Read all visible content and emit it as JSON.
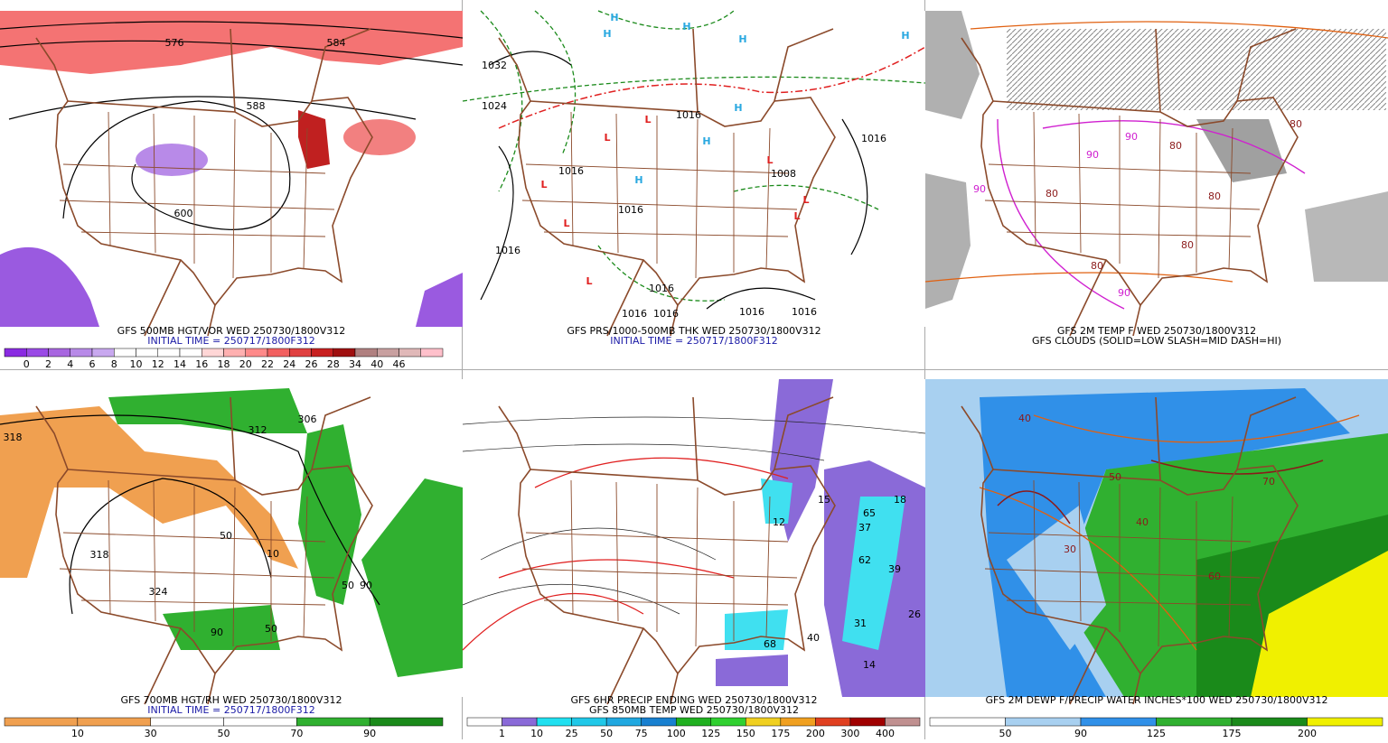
{
  "panels": [
    {
      "captions": [
        {
          "text": "GFS 500MB HGT/VOR WED 250730/1800V312",
          "color": "#000000"
        },
        {
          "text": "INITIAL TIME = 250717/1800F312",
          "color": "#1a1aa6"
        }
      ],
      "map_labels": [
        {
          "text": "576",
          "color": "#000000"
        },
        {
          "text": "584",
          "color": "#000000"
        },
        {
          "text": "588",
          "color": "#000000"
        },
        {
          "text": "600",
          "color": "#000000"
        }
      ],
      "colorbar": {
        "labels": [
          0,
          2,
          4,
          6,
          8,
          10,
          12,
          14,
          16,
          18,
          20,
          22,
          24,
          26,
          28,
          34,
          40,
          46
        ],
        "colors": [
          "#8a2be2",
          "#9a4ae6",
          "#a866e0",
          "#b88ae8",
          "#c8a8ef",
          "#ffffff",
          "#ffffff",
          "#ffffff",
          "#ffffff",
          "#ffd6d6",
          "#ffb0b0",
          "#ff8a8a",
          "#f26060",
          "#e04040",
          "#c82020",
          "#a01010",
          "#b08080",
          "#c8a0a0",
          "#e0b8b8",
          "#ffc0cb"
        ]
      }
    },
    {
      "captions": [
        {
          "text": "GFS PRS/1000-500MB THK WED 250730/1800V312",
          "color": "#000000"
        },
        {
          "text": "INITIAL TIME = 250717/1800F312",
          "color": "#1a1aa6"
        }
      ],
      "map_labels": [
        {
          "text": "H",
          "color": "#29a8e0"
        },
        {
          "text": "H",
          "color": "#29a8e0"
        },
        {
          "text": "H",
          "color": "#29a8e0"
        },
        {
          "text": "H",
          "color": "#29a8e0"
        },
        {
          "text": "H",
          "color": "#29a8e0"
        },
        {
          "text": "H",
          "color": "#29a8e0"
        },
        {
          "text": "H",
          "color": "#29a8e0"
        },
        {
          "text": "H",
          "color": "#29a8e0"
        },
        {
          "text": "L",
          "color": "#e02020"
        },
        {
          "text": "L",
          "color": "#e02020"
        },
        {
          "text": "L",
          "color": "#e02020"
        },
        {
          "text": "L",
          "color": "#e02020"
        },
        {
          "text": "L",
          "color": "#e02020"
        },
        {
          "text": "L",
          "color": "#e02020"
        },
        {
          "text": "L",
          "color": "#e02020"
        },
        {
          "text": "L",
          "color": "#e02020"
        },
        {
          "text": "1032",
          "color": "#000000"
        },
        {
          "text": "1024",
          "color": "#000000"
        },
        {
          "text": "1016",
          "color": "#000000"
        },
        {
          "text": "1016",
          "color": "#000000"
        },
        {
          "text": "1008",
          "color": "#000000"
        },
        {
          "text": "1016",
          "color": "#000000"
        },
        {
          "text": "1016",
          "color": "#000000"
        },
        {
          "text": "1016",
          "color": "#000000"
        },
        {
          "text": "1016",
          "color": "#000000"
        },
        {
          "text": "1016",
          "color": "#000000"
        },
        {
          "text": "1016",
          "color": "#000000"
        },
        {
          "text": "1016",
          "color": "#000000"
        },
        {
          "text": "1016",
          "color": "#000000"
        }
      ],
      "colorbar": null
    },
    {
      "captions": [
        {
          "text": "GFS 2M TEMP F WED 250730/1800V312",
          "color": "#000000"
        },
        {
          "text": "GFS CLOUDS (SOLID=LOW SLASH=MID DASH=HI)",
          "color": "#000000"
        }
      ],
      "map_labels": [
        {
          "text": "80",
          "color": "#8b1a1a"
        },
        {
          "text": "90",
          "color": "#d020d0"
        },
        {
          "text": "90",
          "color": "#d020d0"
        },
        {
          "text": "80",
          "color": "#8b1a1a"
        },
        {
          "text": "80",
          "color": "#8b1a1a"
        },
        {
          "text": "90",
          "color": "#d020d0"
        },
        {
          "text": "80",
          "color": "#8b1a1a"
        },
        {
          "text": "80",
          "color": "#8b1a1a"
        },
        {
          "text": "90",
          "color": "#d020d0"
        },
        {
          "text": "80",
          "color": "#8b1a1a"
        }
      ],
      "colorbar": null
    },
    {
      "captions": [
        {
          "text": "GFS 700MB HGT/RH WED 250730/1800V312",
          "color": "#000000"
        },
        {
          "text": "INITIAL TIME = 250717/1800F312",
          "color": "#1a1aa6"
        }
      ],
      "map_labels": [
        {
          "text": "318",
          "color": "#000000"
        },
        {
          "text": "312",
          "color": "#000000"
        },
        {
          "text": "306",
          "color": "#000000"
        },
        {
          "text": "324",
          "color": "#000000"
        },
        {
          "text": "318",
          "color": "#000000"
        },
        {
          "text": "50",
          "color": "#000000"
        },
        {
          "text": "50",
          "color": "#000000"
        },
        {
          "text": "90",
          "color": "#000000"
        },
        {
          "text": "90",
          "color": "#000000"
        },
        {
          "text": "10",
          "color": "#000000"
        },
        {
          "text": "50",
          "color": "#000000"
        }
      ],
      "colorbar": {
        "labels": [
          10,
          30,
          50,
          70,
          90
        ],
        "colors": [
          "#f0a050",
          "#f0a050",
          "#ffffff",
          "#ffffff",
          "#30b030",
          "#1a8a1a"
        ]
      }
    },
    {
      "captions": [
        {
          "text": "GFS 6HR PRECIP ENDING WED 250730/1800V312",
          "color": "#000000"
        },
        {
          "text": "GFS 850MB TEMP WED 250730/1800V312",
          "color": "#000000"
        }
      ],
      "map_labels": [
        {
          "text": "12",
          "color": "#000000"
        },
        {
          "text": "15",
          "color": "#000000"
        },
        {
          "text": "18",
          "color": "#000000"
        },
        {
          "text": "65",
          "color": "#000000"
        },
        {
          "text": "37",
          "color": "#000000"
        },
        {
          "text": "62",
          "color": "#000000"
        },
        {
          "text": "39",
          "color": "#000000"
        },
        {
          "text": "26",
          "color": "#000000"
        },
        {
          "text": "31",
          "color": "#000000"
        },
        {
          "text": "14",
          "color": "#000000"
        },
        {
          "text": "68",
          "color": "#000000"
        },
        {
          "text": "40",
          "color": "#000000"
        }
      ],
      "colorbar": {
        "labels": [
          1,
          10,
          25,
          50,
          75,
          100,
          125,
          150,
          175,
          200,
          300,
          400
        ],
        "colors": [
          "#ffffff",
          "#8a6ad8",
          "#20e0f0",
          "#20c8e8",
          "#20a8e0",
          "#1880d0",
          "#20b020",
          "#30d030",
          "#f0d020",
          "#f0a020",
          "#e04020",
          "#a00000",
          "#c09090"
        ]
      }
    },
    {
      "captions": [
        {
          "text": "GFS 2M DEWP F/PRECIP WATER INCHES*100 WED 250730/1800V312",
          "color": "#000000"
        }
      ],
      "map_labels": [
        {
          "text": "40",
          "color": "#8b1a1a"
        },
        {
          "text": "50",
          "color": "#8b1a1a"
        },
        {
          "text": "30",
          "color": "#8b1a1a"
        },
        {
          "text": "40",
          "color": "#8b1a1a"
        },
        {
          "text": "70",
          "color": "#8b1a1a"
        },
        {
          "text": "60",
          "color": "#8b1a1a"
        }
      ],
      "colorbar": {
        "labels": [
          50,
          90,
          125,
          175,
          200
        ],
        "colors": [
          "#ffffff",
          "#a8d0f0",
          "#3090e8",
          "#30b030",
          "#1a8a1a",
          "#f0f000"
        ]
      }
    }
  ]
}
